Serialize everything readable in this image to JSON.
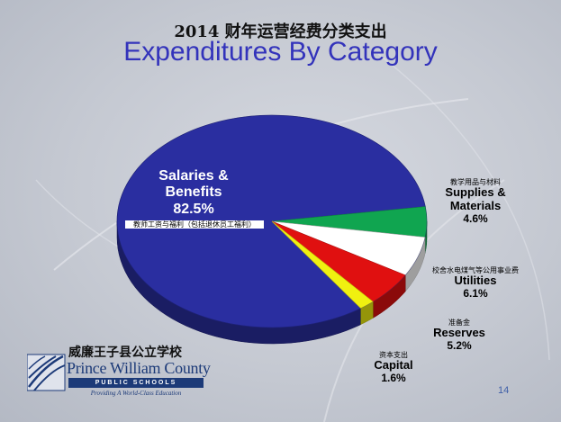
{
  "slide": {
    "title_cn": "2014 财年运营经费分类支出",
    "title_en": "Expenditures By Category",
    "page_number": "14"
  },
  "logo": {
    "name_cn": "威廉王子县公立学校",
    "name": "Prince William County",
    "bar_text": "PUBLIC SCHOOLS",
    "tagline": "Providing A World-Class Education"
  },
  "chart_data": {
    "type": "pie",
    "title": "Expenditures By Category",
    "slices": [
      {
        "label": "Salaries & Benefits",
        "label_cn": "教师工资与福利（包括退休员工福利）",
        "value": 82.5,
        "pct_text": "82.5%",
        "color": "#2a2ea0"
      },
      {
        "label": "Supplies & Materials",
        "label_cn": "教学用品与材料",
        "value": 4.6,
        "pct_text": "4.6%",
        "color": "#10a550"
      },
      {
        "label": "Utilities",
        "label_cn": "校舍水电煤气等公用事业费",
        "value": 6.1,
        "pct_text": "6.1%",
        "color": "#ffffff"
      },
      {
        "label": "Reserves",
        "label_cn": "准备金",
        "value": 5.2,
        "pct_text": "5.2%",
        "color": "#e01010"
      },
      {
        "label": "Capital",
        "label_cn": "资本支出",
        "value": 1.6,
        "pct_text": "1.6%",
        "color": "#f0f010"
      }
    ]
  }
}
